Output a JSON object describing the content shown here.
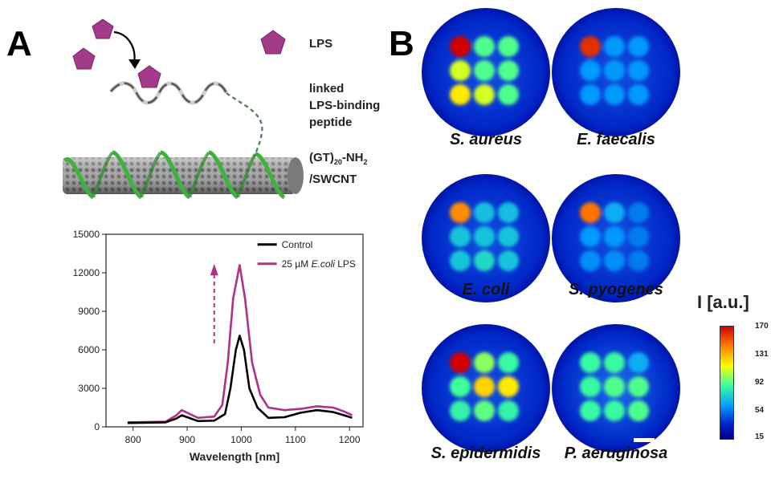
{
  "panels": {
    "a": "A",
    "b": "B"
  },
  "schematic": {
    "lps_label": "LPS",
    "peptide_label": [
      "linked",
      "LPS-binding",
      "peptide"
    ],
    "nanotube_label_main": "(GT)",
    "nanotube_label_sub": "20",
    "nanotube_label_tail": "-NH",
    "nanotube_label_sub2": "2",
    "nanotube_label_line2": "/SWCNT",
    "colors": {
      "lps": "#a43a8a",
      "dna": "#3cb43c",
      "peptide": "#555555",
      "tube": "#8a8a8a"
    }
  },
  "chart_data": {
    "type": "line",
    "xlabel": "Wavelength [nm]",
    "xlim": [
      750,
      1225
    ],
    "ylim": [
      0,
      15000
    ],
    "xticks": [
      800,
      900,
      1000,
      1100,
      1200
    ],
    "yticks": [
      0,
      3000,
      6000,
      9000,
      12000,
      15000
    ],
    "annotation": "dashed upward arrow near 950 nm",
    "series": [
      {
        "name": "Control",
        "color": "#000000",
        "x": [
          790,
          860,
          880,
          890,
          900,
          920,
          950,
          970,
          980,
          990,
          997,
          1005,
          1015,
          1030,
          1050,
          1080,
          1110,
          1140,
          1170,
          1190,
          1205
        ],
        "y": [
          300,
          350,
          650,
          900,
          750,
          450,
          480,
          1000,
          3000,
          6000,
          7100,
          6000,
          3000,
          1500,
          700,
          750,
          1100,
          1300,
          1150,
          900,
          700
        ]
      },
      {
        "name": "25 µM E.coli LPS",
        "color": "#b0308a",
        "x": [
          790,
          860,
          880,
          890,
          900,
          920,
          950,
          965,
          975,
          985,
          997,
          1007,
          1020,
          1035,
          1050,
          1080,
          1110,
          1140,
          1170,
          1190,
          1205
        ],
        "y": [
          350,
          400,
          900,
          1300,
          1100,
          700,
          800,
          1700,
          5000,
          10000,
          12600,
          10000,
          5000,
          2500,
          1500,
          1300,
          1400,
          1600,
          1500,
          1200,
          900
        ]
      }
    ]
  },
  "legend": {
    "control": "Control",
    "lps_prefix": "25 µM ",
    "lps_italic": "E.coli",
    "lps_suffix": " LPS"
  },
  "panel_b": {
    "images": [
      {
        "label": "S. aureus",
        "levels": [
          170,
          92,
          92,
          110,
          92,
          92,
          120,
          110,
          92
        ]
      },
      {
        "label": "E. faecalis",
        "levels": [
          160,
          60,
          60,
          60,
          60,
          60,
          60,
          60,
          60
        ]
      },
      {
        "label": "E. coli",
        "levels": [
          140,
          70,
          70,
          72,
          72,
          72,
          72,
          78,
          72
        ]
      },
      {
        "label": "S. pyogenes",
        "levels": [
          145,
          65,
          54,
          60,
          60,
          54,
          58,
          58,
          54
        ]
      },
      {
        "label": "S. epidermidis",
        "levels": [
          170,
          100,
          88,
          90,
          125,
          120,
          86,
          94,
          86
        ]
      },
      {
        "label": "P. aeruginosa",
        "levels": [
          88,
          88,
          65,
          88,
          92,
          92,
          88,
          88,
          92
        ]
      }
    ],
    "colorbar": {
      "title": "I [a.u.]",
      "ticks": [
        "170",
        "131",
        "92",
        "54",
        "15"
      ],
      "range": [
        15,
        170
      ]
    }
  }
}
